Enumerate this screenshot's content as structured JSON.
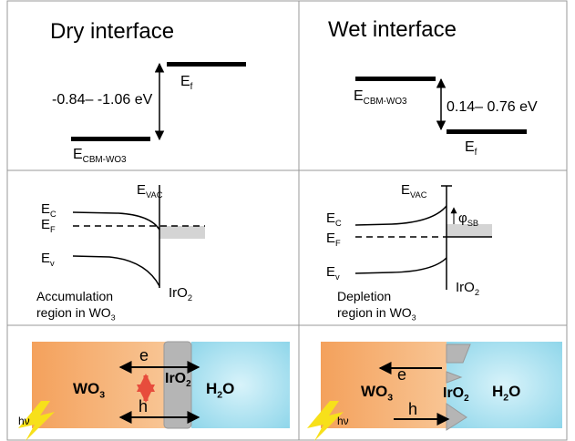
{
  "dry": {
    "title": "Dry interface",
    "gap": "-0.84– -1.06 eV",
    "ef": {
      "main": "E",
      "sub": "f"
    },
    "cbm": {
      "main": "E",
      "sub": "CBM-WO3"
    },
    "evac": {
      "main": "E",
      "sub": "VAC"
    },
    "ec": {
      "main": "E",
      "sub": "C"
    },
    "eF": {
      "main": "E",
      "sub": "F"
    },
    "ev": {
      "main": "E",
      "sub": "v"
    },
    "iro2": {
      "main": "IrO",
      "sub": "2"
    },
    "region_line1": "Accumulation",
    "region_line2": {
      "main": "region in  WO",
      "sub": "3"
    },
    "wo3": {
      "main": "WO",
      "sub": "3"
    },
    "iro2_b": {
      "main": "IrO",
      "sub": "2"
    },
    "h2o": {
      "main": "H",
      "sub": "2",
      "tail": "O"
    },
    "e": "e",
    "h": "h",
    "hv": "hν"
  },
  "wet": {
    "title": "Wet interface",
    "gap": "0.14– 0.76 eV",
    "ef": {
      "main": "E",
      "sub": "f"
    },
    "cbm": {
      "main": "E",
      "sub": "CBM-WO3"
    },
    "evac": {
      "main": "E",
      "sub": "VAC"
    },
    "phi": {
      "main": "φ",
      "sub": "SB"
    },
    "ec": {
      "main": "E",
      "sub": "C"
    },
    "eF": {
      "main": "E",
      "sub": "F"
    },
    "ev": {
      "main": "E",
      "sub": "v"
    },
    "iro2": {
      "main": "IrO",
      "sub": "2"
    },
    "region_line1": "Depletion",
    "region_line2": {
      "main": "region in WO",
      "sub": "3"
    },
    "wo3": {
      "main": "WO",
      "sub": "3"
    },
    "iro2_b": {
      "main": "IrO",
      "sub": "2"
    },
    "h2o": {
      "main": "H",
      "sub": "2",
      "tail": "O"
    },
    "e": "e",
    "h": "h",
    "hv": "hν"
  }
}
